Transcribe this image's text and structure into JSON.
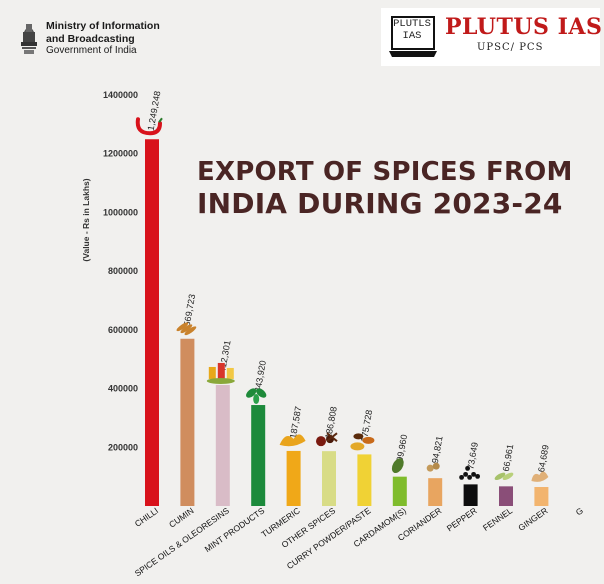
{
  "header": {
    "ministry_line1": "Ministry of Information",
    "ministry_line2": "and Broadcasting",
    "ministry_line3": "Government of India"
  },
  "brand": {
    "logo_text_line1": "PLUTLS",
    "logo_text_line2": "IAS",
    "name": "PLUTUS IAS",
    "tagline": "UPSC/ PCS"
  },
  "chart_data": {
    "type": "bar",
    "title": "EXPORT OF SPICES FROM INDIA DURING 2023-24",
    "title_line1": "EXPORT OF SPICES FROM",
    "title_line2": "INDIA DURING 2023-24",
    "ylabel": "(Value - Rs in Lakhs)",
    "ylim": [
      0,
      1400000
    ],
    "yticks": [
      {
        "value": 200000,
        "label": "200000"
      },
      {
        "value": 400000,
        "label": "400000"
      },
      {
        "value": 600000,
        "label": "600000"
      },
      {
        "value": 800000,
        "label": "800000"
      },
      {
        "value": 1000000,
        "label": "1000000"
      },
      {
        "value": 1200000,
        "label": "1200000"
      },
      {
        "value": 1400000,
        "label": "1400000"
      }
    ],
    "grid": false,
    "categories": [
      "CHILLI",
      "CUMIN",
      "SPICE OILS & OLEORESINS",
      "MINT PRODUCTS",
      "TURMERIC",
      "OTHER SPICES",
      "CURRY POWDER/PASTE",
      "CARDAMOM(S)",
      "CORIANDER",
      "PEPPER",
      "FENNEL",
      "GINGER",
      "G"
    ],
    "values": [
      1249248,
      569723,
      412301,
      343920,
      187587,
      186808,
      175728,
      99960,
      94821,
      73649,
      66961,
      64689,
      null
    ],
    "value_labels": [
      "1,249,248",
      "569,723",
      "412,301",
      "343,920",
      "187,587",
      "186,808",
      "175,728",
      "99,960",
      "94,821",
      "73,649",
      "66,961",
      "64,689",
      ""
    ],
    "colors": [
      "#d8121b",
      "#d08d5e",
      "#d9bcc7",
      "#1c8a3b",
      "#f0a818",
      "#d8dc86",
      "#f0d235",
      "#7fbc2c",
      "#e8a560",
      "#0d0d0d",
      "#8a4e78",
      "#f2b46e",
      "#999999"
    ],
    "icons": [
      "chilli-icon",
      "cumin-icon",
      "spice-oil-bottles-icon",
      "mint-leaf-icon",
      "turmeric-icon",
      "other-spices-icon",
      "curry-powder-icon",
      "cardamom-icon",
      "coriander-icon",
      "pepper-icon",
      "fennel-icon",
      "ginger-icon",
      ""
    ]
  }
}
